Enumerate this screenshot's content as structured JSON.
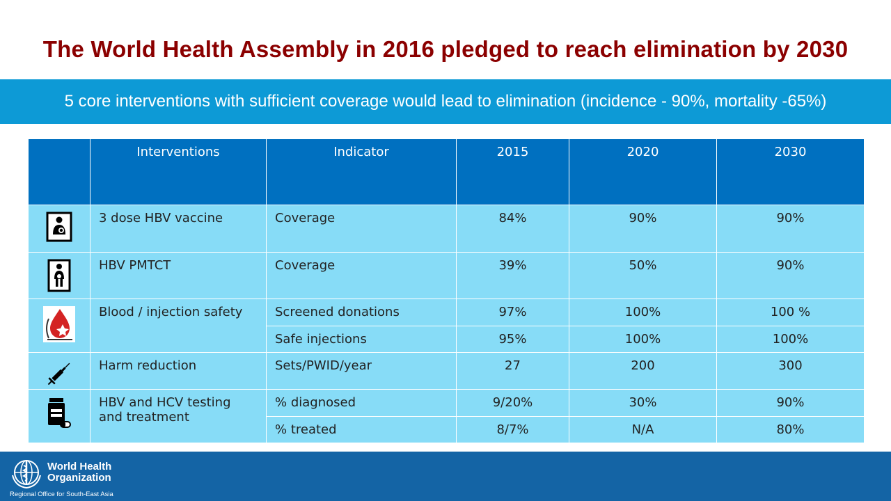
{
  "title": "The World Health Assembly in 2016 pledged to reach elimination by 2030",
  "subtitle": "5 core interventions with sufficient coverage would lead to elimination (incidence - 90%, mortality -65%)",
  "table": {
    "headers": [
      "",
      "Interventions",
      "Indicator",
      "2015",
      "2020",
      "2030"
    ],
    "rows": [
      {
        "icon": "vaccine-mother-child-icon",
        "intervention": "3 dose HBV vaccine",
        "indicator": "Coverage",
        "y2015": "84%",
        "y2020": "90%",
        "y2030": "90%"
      },
      {
        "icon": "pregnant-woman-icon",
        "intervention": "HBV PMTCT",
        "indicator": "Coverage",
        "y2015": "39%",
        "y2020": "50%",
        "y2030": "90%"
      },
      {
        "icon": "blood-drop-icon",
        "intervention": "Blood / injection safety",
        "indicator": "Screened donations",
        "y2015": "97%",
        "y2020": "100%",
        "y2030": "100 %"
      },
      {
        "indicator": "Safe injections",
        "y2015": "95%",
        "y2020": "100%",
        "y2030": "100%"
      },
      {
        "icon": "syringe-icon",
        "intervention": "Harm reduction",
        "indicator": "Sets/PWID/year",
        "y2015": "27",
        "y2020": "200",
        "y2030": "300"
      },
      {
        "icon": "pill-bottle-icon",
        "intervention": "HBV and HCV testing and treatment",
        "indicator": "% diagnosed",
        "y2015": "9/20%",
        "y2020": "30%",
        "y2030": "90%"
      },
      {
        "indicator": "% treated",
        "y2015": "8/7%",
        "y2020": "N/A",
        "y2030": "80%"
      }
    ]
  },
  "footer": {
    "org_name": "World Health Organization",
    "region": "Regional Office for South-East Asia"
  },
  "colors": {
    "title": "#8b0000",
    "banner": "#0d9ad6",
    "table_header": "#0070c0",
    "table_row": "#87dcf7",
    "footer": "#1464a5"
  }
}
